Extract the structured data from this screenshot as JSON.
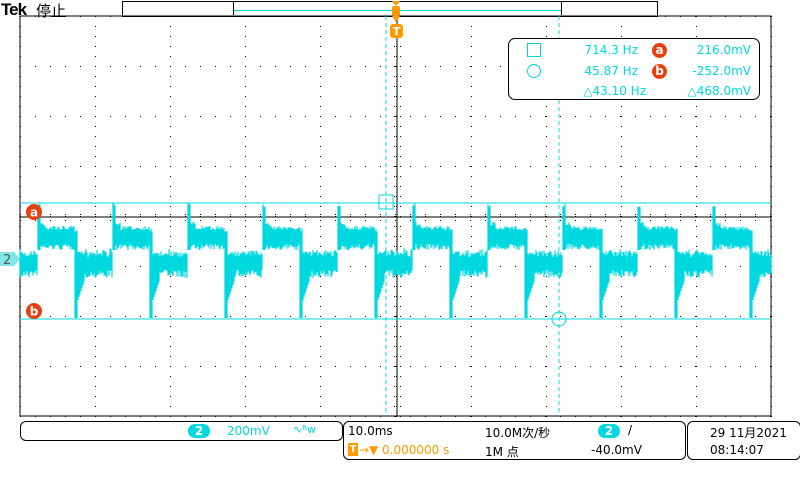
{
  "header": {
    "brand": "Tek",
    "status": "停止"
  },
  "trigger_marker": "T",
  "measurements": {
    "cursor1_icon": "square-icon",
    "cursor1_freq": "714.3 Hz",
    "cursor_a_label": "a",
    "cursor_a_value": "216.0mV",
    "cursor2_icon": "circle-icon",
    "cursor2_freq": "45.87 Hz",
    "cursor_b_label": "b",
    "cursor_b_value": "-252.0mV",
    "delta_freq": "△43.10 Hz",
    "delta_value": "△468.0mV"
  },
  "markers": {
    "channel": "2",
    "a": "a",
    "b": "b"
  },
  "channel_box": {
    "channel": "2",
    "scale": "200mV",
    "coupling_icon": "bandwidth-limit-icon",
    "coupling": "∿ᴮw"
  },
  "timebase": {
    "horizontal_scale": "10.0ms",
    "sample_rate": "10.0M次/秒",
    "trigger_channel": "2",
    "trigger_slope": "/",
    "trigger_delay": "0.000000 s",
    "trigger_icon": "T",
    "record_length": "1M 点",
    "trigger_level": "-40.0mV"
  },
  "datetime": {
    "date": "29 11月2021",
    "time": "08:14:07"
  },
  "colors": {
    "channel2": "#00d8e0",
    "trigger": "#ff9a00",
    "cursor_badge": "#e8400c"
  }
}
